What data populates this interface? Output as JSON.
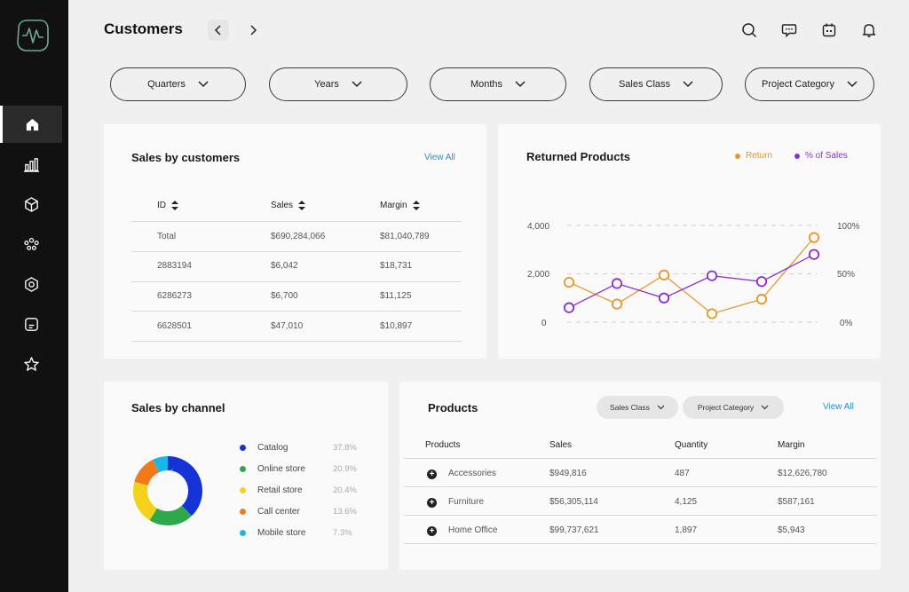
{
  "header": {
    "title": "Customers"
  },
  "sidebar": {
    "items": [
      {
        "icon": "home-icon",
        "active": true
      },
      {
        "icon": "bar-chart-icon",
        "active": false
      },
      {
        "icon": "box-icon",
        "active": false
      },
      {
        "icon": "people-icon",
        "active": false
      },
      {
        "icon": "hexagon-icon",
        "active": false
      },
      {
        "icon": "document-icon",
        "active": false
      },
      {
        "icon": "star-icon",
        "active": false
      }
    ]
  },
  "filters": [
    "Quarters",
    "Years",
    "Months",
    "Sales Class",
    "Project Category"
  ],
  "sales_by_customers": {
    "title": "Sales by customers",
    "view_all": "View All",
    "columns": [
      "ID",
      "Sales",
      "Margin"
    ],
    "rows": [
      [
        "Total",
        "$690,284,066",
        "$81,040,789"
      ],
      [
        "2883194",
        "$6,042",
        "$18,731"
      ],
      [
        "6286273",
        "$6,700",
        "$11,125"
      ],
      [
        "6628501",
        "$47,010",
        "$10,897"
      ]
    ]
  },
  "returned_products": {
    "title": "Returned Products",
    "legend": [
      {
        "label": "Return",
        "color": "#e8952a"
      },
      {
        "label": "% of Sales",
        "color": "#8a2fd1"
      }
    ]
  },
  "chart_data": {
    "type": "line",
    "title": "Returned Products",
    "x": [
      1,
      2,
      3,
      4,
      5,
      6
    ],
    "series": [
      {
        "name": "Return",
        "axis": "left",
        "values": [
          1650,
          750,
          1950,
          350,
          950,
          3500
        ]
      },
      {
        "name": "% of Sales",
        "axis": "right",
        "values": [
          15,
          40,
          25,
          48,
          42,
          70
        ]
      }
    ],
    "y_left": {
      "ticks": [
        "4,000",
        "2,000",
        "0"
      ],
      "range": [
        0,
        4000
      ]
    },
    "y_right": {
      "ticks": [
        "100%",
        "50%",
        "0%"
      ],
      "range": [
        0,
        100
      ]
    },
    "grid": true,
    "legend_position": "top-right"
  },
  "sales_by_channel": {
    "title": "Sales by channel",
    "items": [
      {
        "label": "Catalog",
        "pct": "37.8%",
        "value": 37.8,
        "color": "#1532d6"
      },
      {
        "label": "Online store",
        "pct": "20.9%",
        "value": 20.9,
        "color": "#2ea84a"
      },
      {
        "label": "Retail store",
        "pct": "20.4%",
        "value": 20.4,
        "color": "#f2d21a"
      },
      {
        "label": "Call center",
        "pct": "13.6%",
        "value": 13.6,
        "color": "#f07a1a"
      },
      {
        "label": "Mobile store",
        "pct": "7.3%",
        "value": 7.3,
        "color": "#1ab6e8"
      }
    ]
  },
  "products": {
    "title": "Products",
    "filters": [
      "Sales Class",
      "Project Category"
    ],
    "view_all": "View All",
    "columns": [
      "Products",
      "Sales",
      "Quantity",
      "Margin"
    ],
    "rows": [
      [
        "Accessories",
        "$949,816",
        "487",
        "$12,626,780"
      ],
      [
        "Furniture",
        "$56,305,114",
        "4,125",
        "$587,161"
      ],
      [
        "Home Office",
        "$99,737,621",
        "1,897",
        "$5,943"
      ]
    ]
  }
}
